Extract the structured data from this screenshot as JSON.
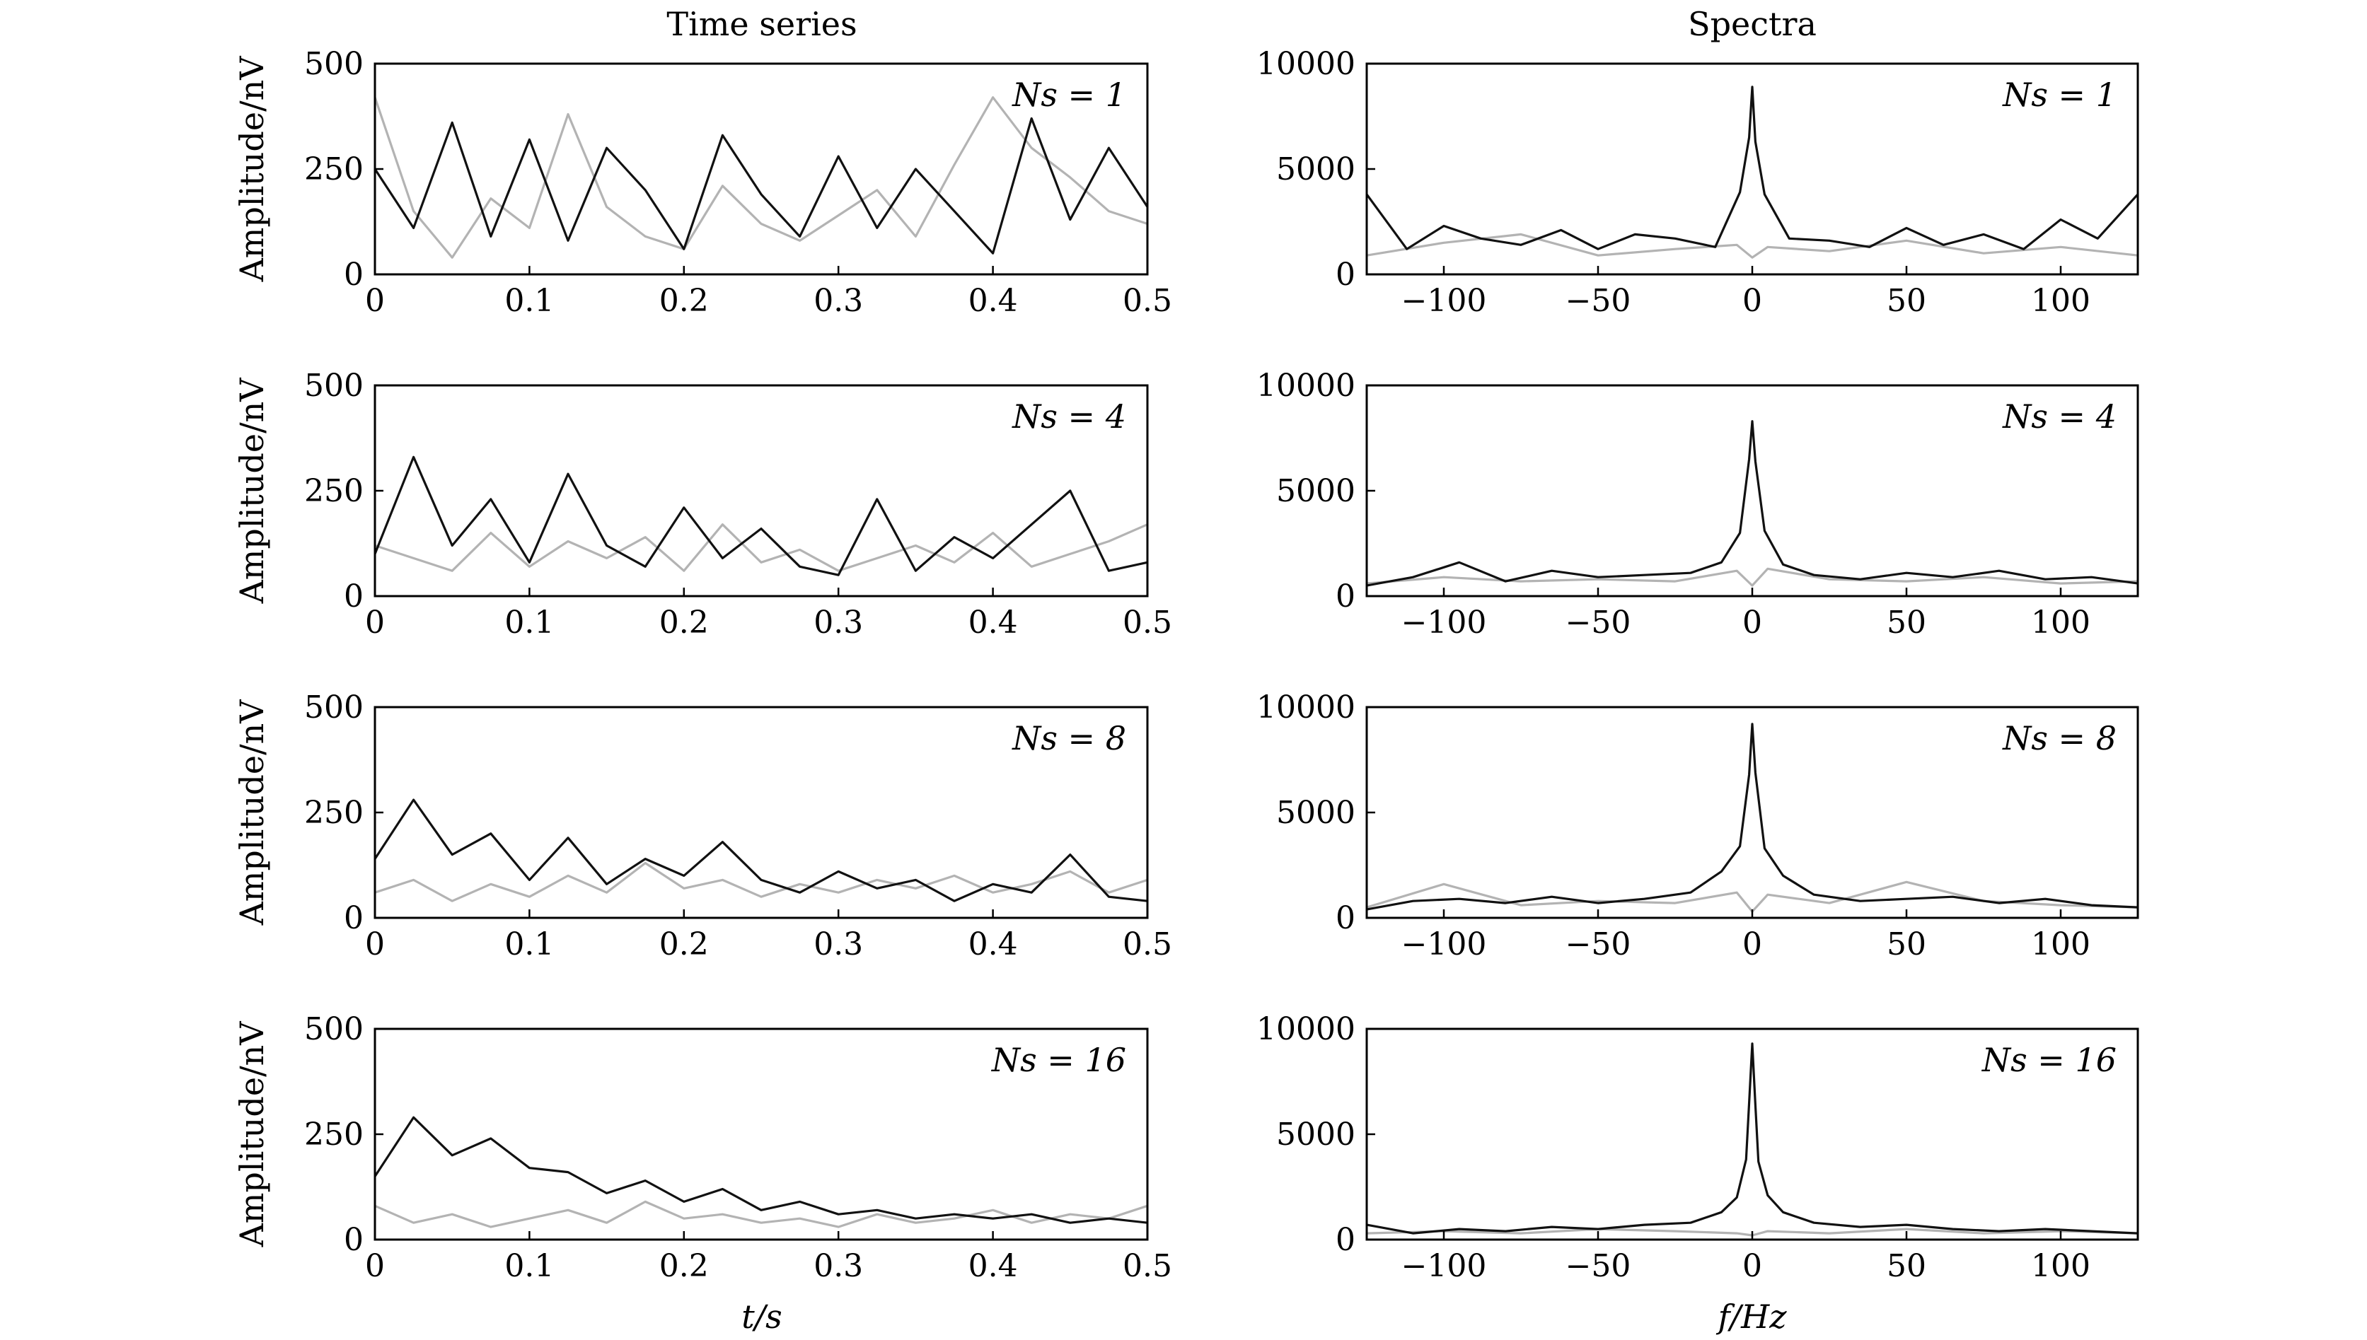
{
  "figure": {
    "column_titles": [
      "Time series",
      "Spectra"
    ],
    "time_ylabel": "Amplitude/nV",
    "time_xlabel": "t/s",
    "spec_xlabel": "f/Hz"
  },
  "colors": {
    "noise": "#b3b3b3",
    "signal": "#111111"
  },
  "chart_data": [
    {
      "type": "line",
      "panel": "time",
      "label": "Ns = 1",
      "ns": 1,
      "xlim": [
        0,
        0.5
      ],
      "ylim": [
        0,
        500
      ],
      "xticks": [
        "0",
        "0.1",
        "0.2",
        "0.3",
        "0.4",
        "0.5"
      ],
      "yticks": [
        "0",
        "250",
        "500"
      ],
      "series": [
        {
          "color": "#b3b3b3",
          "x": [
            0,
            0.025,
            0.05,
            0.075,
            0.1,
            0.125,
            0.15,
            0.175,
            0.2,
            0.225,
            0.25,
            0.275,
            0.3,
            0.325,
            0.35,
            0.375,
            0.4,
            0.425,
            0.45,
            0.475,
            0.5
          ],
          "y": [
            420,
            150,
            40,
            180,
            110,
            380,
            160,
            90,
            60,
            210,
            120,
            80,
            140,
            200,
            90,
            260,
            420,
            300,
            230,
            150,
            120
          ]
        },
        {
          "color": "#111111",
          "x": [
            0,
            0.025,
            0.05,
            0.075,
            0.1,
            0.125,
            0.15,
            0.175,
            0.2,
            0.225,
            0.25,
            0.275,
            0.3,
            0.325,
            0.35,
            0.375,
            0.4,
            0.425,
            0.45,
            0.475,
            0.5
          ],
          "y": [
            250,
            110,
            360,
            90,
            320,
            80,
            300,
            200,
            60,
            330,
            190,
            90,
            280,
            110,
            250,
            150,
            50,
            370,
            130,
            300,
            160
          ]
        }
      ]
    },
    {
      "type": "line",
      "panel": "time",
      "label": "Ns = 4",
      "ns": 4,
      "xlim": [
        0,
        0.5
      ],
      "ylim": [
        0,
        500
      ],
      "xticks": [
        "0",
        "0.1",
        "0.2",
        "0.3",
        "0.4",
        "0.5"
      ],
      "yticks": [
        "0",
        "250",
        "500"
      ],
      "series": [
        {
          "color": "#b3b3b3",
          "x": [
            0,
            0.025,
            0.05,
            0.075,
            0.1,
            0.125,
            0.15,
            0.175,
            0.2,
            0.225,
            0.25,
            0.275,
            0.3,
            0.325,
            0.35,
            0.375,
            0.4,
            0.425,
            0.45,
            0.475,
            0.5
          ],
          "y": [
            120,
            90,
            60,
            150,
            70,
            130,
            90,
            140,
            60,
            170,
            80,
            110,
            60,
            90,
            120,
            80,
            150,
            70,
            100,
            130,
            170
          ]
        },
        {
          "color": "#111111",
          "x": [
            0,
            0.025,
            0.05,
            0.075,
            0.1,
            0.125,
            0.15,
            0.175,
            0.2,
            0.225,
            0.25,
            0.275,
            0.3,
            0.325,
            0.35,
            0.375,
            0.4,
            0.425,
            0.45,
            0.475,
            0.5
          ],
          "y": [
            100,
            330,
            120,
            230,
            80,
            290,
            120,
            70,
            210,
            90,
            160,
            70,
            50,
            230,
            60,
            140,
            90,
            170,
            250,
            60,
            80
          ]
        }
      ]
    },
    {
      "type": "line",
      "panel": "time",
      "label": "Ns = 8",
      "ns": 8,
      "xlim": [
        0,
        0.5
      ],
      "ylim": [
        0,
        500
      ],
      "xticks": [
        "0",
        "0.1",
        "0.2",
        "0.3",
        "0.4",
        "0.5"
      ],
      "yticks": [
        "0",
        "250",
        "500"
      ],
      "series": [
        {
          "color": "#b3b3b3",
          "x": [
            0,
            0.025,
            0.05,
            0.075,
            0.1,
            0.125,
            0.15,
            0.175,
            0.2,
            0.225,
            0.25,
            0.275,
            0.3,
            0.325,
            0.35,
            0.375,
            0.4,
            0.425,
            0.45,
            0.475,
            0.5
          ],
          "y": [
            60,
            90,
            40,
            80,
            50,
            100,
            60,
            130,
            70,
            90,
            50,
            80,
            60,
            90,
            70,
            100,
            60,
            80,
            110,
            60,
            90
          ]
        },
        {
          "color": "#111111",
          "x": [
            0,
            0.025,
            0.05,
            0.075,
            0.1,
            0.125,
            0.15,
            0.175,
            0.2,
            0.225,
            0.25,
            0.275,
            0.3,
            0.325,
            0.35,
            0.375,
            0.4,
            0.425,
            0.45,
            0.475,
            0.5
          ],
          "y": [
            140,
            280,
            150,
            200,
            90,
            190,
            80,
            140,
            100,
            180,
            90,
            60,
            110,
            70,
            90,
            40,
            80,
            60,
            150,
            50,
            40
          ]
        }
      ]
    },
    {
      "type": "line",
      "panel": "time",
      "label": "Ns = 16",
      "ns": 16,
      "xlim": [
        0,
        0.5
      ],
      "ylim": [
        0,
        500
      ],
      "xticks": [
        "0",
        "0.1",
        "0.2",
        "0.3",
        "0.4",
        "0.5"
      ],
      "yticks": [
        "0",
        "250",
        "500"
      ],
      "series": [
        {
          "color": "#b3b3b3",
          "x": [
            0,
            0.025,
            0.05,
            0.075,
            0.1,
            0.125,
            0.15,
            0.175,
            0.2,
            0.225,
            0.25,
            0.275,
            0.3,
            0.325,
            0.35,
            0.375,
            0.4,
            0.425,
            0.45,
            0.475,
            0.5
          ],
          "y": [
            80,
            40,
            60,
            30,
            50,
            70,
            40,
            90,
            50,
            60,
            40,
            50,
            30,
            60,
            40,
            50,
            70,
            40,
            60,
            50,
            80
          ]
        },
        {
          "color": "#111111",
          "x": [
            0,
            0.025,
            0.05,
            0.075,
            0.1,
            0.125,
            0.15,
            0.175,
            0.2,
            0.225,
            0.25,
            0.275,
            0.3,
            0.325,
            0.35,
            0.375,
            0.4,
            0.425,
            0.45,
            0.475,
            0.5
          ],
          "y": [
            150,
            290,
            200,
            240,
            170,
            160,
            110,
            140,
            90,
            120,
            70,
            90,
            60,
            70,
            50,
            60,
            50,
            60,
            40,
            50,
            40
          ]
        }
      ]
    },
    {
      "type": "line",
      "panel": "spectrum",
      "label": "Ns = 1",
      "ns": 1,
      "xlim": [
        -125,
        125
      ],
      "ylim": [
        0,
        10000
      ],
      "xticks": [
        "−100",
        "−50",
        "0",
        "50",
        "100"
      ],
      "yticks": [
        "0",
        "5000",
        "10000"
      ],
      "series": [
        {
          "color": "#b3b3b3",
          "x": [
            -125,
            -100,
            -75,
            -50,
            -25,
            -5,
            0,
            5,
            25,
            50,
            75,
            100,
            125
          ],
          "y": [
            900,
            1500,
            1900,
            900,
            1200,
            1400,
            800,
            1300,
            1100,
            1600,
            1000,
            1300,
            900
          ]
        },
        {
          "color": "#111111",
          "x": [
            -125,
            -112,
            -100,
            -88,
            -75,
            -62,
            -50,
            -38,
            -25,
            -12,
            -4,
            -1,
            0,
            1,
            4,
            12,
            25,
            38,
            50,
            62,
            75,
            88,
            100,
            112,
            125
          ],
          "y": [
            3800,
            1200,
            2300,
            1700,
            1400,
            2100,
            1200,
            1900,
            1700,
            1300,
            3900,
            6500,
            8900,
            6300,
            3800,
            1700,
            1600,
            1300,
            2200,
            1400,
            1900,
            1200,
            2600,
            1700,
            3800
          ]
        }
      ]
    },
    {
      "type": "line",
      "panel": "spectrum",
      "label": "Ns = 4",
      "ns": 4,
      "xlim": [
        -125,
        125
      ],
      "ylim": [
        0,
        10000
      ],
      "xticks": [
        "−100",
        "−50",
        "0",
        "50",
        "100"
      ],
      "yticks": [
        "0",
        "5000",
        "10000"
      ],
      "series": [
        {
          "color": "#b3b3b3",
          "x": [
            -125,
            -100,
            -75,
            -50,
            -25,
            -5,
            0,
            5,
            25,
            50,
            75,
            100,
            125
          ],
          "y": [
            600,
            900,
            700,
            800,
            700,
            1200,
            500,
            1300,
            800,
            700,
            900,
            600,
            700
          ]
        },
        {
          "color": "#111111",
          "x": [
            -125,
            -110,
            -95,
            -80,
            -65,
            -50,
            -35,
            -20,
            -10,
            -4,
            -1,
            0,
            1,
            4,
            10,
            20,
            35,
            50,
            65,
            80,
            95,
            110,
            125
          ],
          "y": [
            500,
            900,
            1600,
            700,
            1200,
            900,
            1000,
            1100,
            1600,
            3000,
            6500,
            8300,
            6400,
            3100,
            1500,
            1000,
            800,
            1100,
            900,
            1200,
            800,
            900,
            600
          ]
        }
      ]
    },
    {
      "type": "line",
      "panel": "spectrum",
      "label": "Ns = 8",
      "ns": 8,
      "xlim": [
        -125,
        125
      ],
      "ylim": [
        0,
        10000
      ],
      "xticks": [
        "−100",
        "−50",
        "0",
        "50",
        "100"
      ],
      "yticks": [
        "0",
        "5000",
        "10000"
      ],
      "series": [
        {
          "color": "#b3b3b3",
          "x": [
            -125,
            -100,
            -75,
            -50,
            -25,
            -5,
            0,
            5,
            25,
            50,
            75,
            100,
            125
          ],
          "y": [
            500,
            1600,
            600,
            800,
            700,
            1200,
            300,
            1100,
            700,
            1700,
            800,
            600,
            500
          ]
        },
        {
          "color": "#111111",
          "x": [
            -125,
            -110,
            -95,
            -80,
            -65,
            -50,
            -35,
            -20,
            -10,
            -4,
            -1,
            0,
            1,
            4,
            10,
            20,
            35,
            50,
            65,
            80,
            95,
            110,
            125
          ],
          "y": [
            400,
            800,
            900,
            700,
            1000,
            700,
            900,
            1200,
            2200,
            3400,
            6800,
            9200,
            6900,
            3300,
            2000,
            1100,
            800,
            900,
            1000,
            700,
            900,
            600,
            500
          ]
        }
      ]
    },
    {
      "type": "line",
      "panel": "spectrum",
      "label": "Ns = 16",
      "ns": 16,
      "xlim": [
        -125,
        125
      ],
      "ylim": [
        0,
        10000
      ],
      "xticks": [
        "−100",
        "−50",
        "0",
        "50",
        "100"
      ],
      "yticks": [
        "0",
        "5000",
        "10000"
      ],
      "series": [
        {
          "color": "#b3b3b3",
          "x": [
            -125,
            -100,
            -75,
            -50,
            -25,
            -5,
            0,
            5,
            25,
            50,
            75,
            100,
            125
          ],
          "y": [
            300,
            400,
            300,
            500,
            400,
            300,
            200,
            400,
            300,
            500,
            300,
            400,
            300
          ]
        },
        {
          "color": "#111111",
          "x": [
            -125,
            -110,
            -95,
            -80,
            -65,
            -50,
            -35,
            -20,
            -10,
            -5,
            -2,
            -1,
            0,
            1,
            2,
            5,
            10,
            20,
            35,
            50,
            65,
            80,
            95,
            110,
            125
          ],
          "y": [
            700,
            300,
            500,
            400,
            600,
            500,
            700,
            800,
            1300,
            2000,
            3800,
            6500,
            9300,
            6400,
            3700,
            2100,
            1300,
            800,
            600,
            700,
            500,
            400,
            500,
            400,
            300
          ]
        }
      ]
    }
  ]
}
